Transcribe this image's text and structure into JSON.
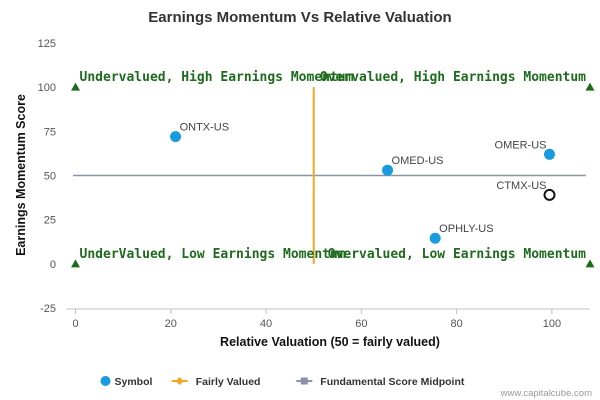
{
  "chart_data": {
    "type": "scatter",
    "title": "Earnings Momentum Vs Relative Valuation",
    "xlabel": "Relative Valuation (50 = fairly valued)",
    "ylabel": "Earnings Momentum Score",
    "xlim": [
      -2,
      108
    ],
    "ylim": [
      -25,
      125
    ],
    "x_ticks": [
      0,
      20,
      40,
      60,
      80,
      100
    ],
    "y_ticks": [
      -25,
      0,
      25,
      50,
      75,
      100,
      125
    ],
    "grid": false,
    "points": [
      {
        "label": "ONTX-US",
        "x": 21,
        "y": 72,
        "filled": true
      },
      {
        "label": "OMED-US",
        "x": 65.5,
        "y": 53,
        "filled": true
      },
      {
        "label": "OMER-US",
        "x": 99.5,
        "y": 62,
        "filled": true
      },
      {
        "label": "CTMX-US",
        "x": 99.5,
        "y": 39,
        "filled": false
      },
      {
        "label": "OPHLY-US",
        "x": 75.5,
        "y": 14.5,
        "filled": true
      }
    ],
    "fairly_valued_x": 50,
    "midpoint_y": 50,
    "corner_markers": [
      {
        "x": 0,
        "y": 100
      },
      {
        "x": 108,
        "y": 100
      },
      {
        "x": 0,
        "y": 0
      },
      {
        "x": 108,
        "y": 0
      }
    ],
    "quadrant_labels": [
      {
        "text": "Undervalued, High Earnings Momentum",
        "x": 0,
        "y": 100,
        "anchor": "start"
      },
      {
        "text": "Overvalued, High Earnings Momentum",
        "x": 108,
        "y": 100,
        "anchor": "end"
      },
      {
        "text": "UnderValued, Low Earnings Momentum",
        "x": 0,
        "y": 0,
        "anchor": "start"
      },
      {
        "text": "Overvalued, Low Earnings Momentum",
        "x": 108,
        "y": 0,
        "anchor": "end"
      }
    ],
    "legend": {
      "placement": "bottom-center",
      "items": [
        {
          "label": "Symbol",
          "color": "#1a9be0",
          "shape": "circle"
        },
        {
          "label": "Fairly Valued",
          "color": "#f5a623",
          "shape": "line-diamond"
        },
        {
          "label": "Fundamental Score Midpoint",
          "color": "#8a94a6",
          "shape": "line-square"
        }
      ]
    },
    "colors": {
      "point_fill": "#1a9be0",
      "open_point_stroke": "#111111",
      "fairly_valued_line": "#f5a623",
      "midpoint_line": "#8a94a6",
      "quadrant_text": "#1e6b1e",
      "corner_marker": "#1e6b1e"
    }
  },
  "credit": "www.capitalcube.com"
}
